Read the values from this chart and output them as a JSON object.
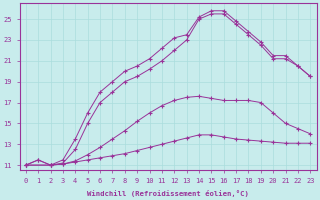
{
  "xlabel": "Windchill (Refroidissement éolien,°C)",
  "background_color": "#c8ecec",
  "line_color": "#993399",
  "grid_color": "#aadddd",
  "ylim": [
    10.5,
    26.5
  ],
  "xlim": [
    -0.5,
    23.5
  ],
  "yticks": [
    11,
    13,
    15,
    17,
    19,
    21,
    23,
    25
  ],
  "xticks": [
    0,
    1,
    2,
    3,
    4,
    5,
    6,
    7,
    8,
    9,
    10,
    11,
    12,
    13,
    14,
    15,
    16,
    17,
    18,
    19,
    20,
    21,
    22,
    23
  ],
  "series1_x": [
    0,
    1,
    2,
    3,
    4,
    5,
    6,
    7,
    8,
    9,
    10,
    11,
    12,
    13,
    14,
    15,
    16,
    17,
    18,
    19,
    20,
    21,
    22,
    23
  ],
  "series1_y": [
    11.0,
    11.5,
    11.0,
    11.1,
    11.3,
    11.5,
    11.7,
    11.9,
    12.1,
    12.4,
    12.7,
    13.0,
    13.3,
    13.6,
    13.9,
    13.9,
    13.7,
    13.5,
    13.4,
    13.3,
    13.2,
    13.1,
    13.1,
    13.1
  ],
  "series2_x": [
    0,
    1,
    2,
    3,
    4,
    5,
    6,
    7,
    8,
    9,
    10,
    11,
    12,
    13,
    14,
    15,
    16,
    17,
    18,
    19,
    20,
    21,
    22,
    23
  ],
  "series2_y": [
    11.0,
    11.5,
    11.0,
    11.1,
    11.4,
    12.0,
    12.7,
    13.5,
    14.3,
    15.2,
    16.0,
    16.7,
    17.2,
    17.5,
    17.6,
    17.4,
    17.2,
    17.2,
    17.2,
    17.0,
    16.0,
    15.0,
    14.5,
    14.0
  ],
  "series3_x": [
    0,
    2,
    3,
    4,
    5,
    6,
    7,
    8,
    9,
    10,
    11,
    12,
    13,
    14,
    15,
    16,
    17,
    18,
    19,
    20,
    21,
    22,
    23
  ],
  "series3_y": [
    11.0,
    11.0,
    11.2,
    12.5,
    15.0,
    17.0,
    18.0,
    19.0,
    19.5,
    20.2,
    21.0,
    22.0,
    23.0,
    25.0,
    25.5,
    25.5,
    24.5,
    23.5,
    22.5,
    21.2,
    21.2,
    20.5,
    19.5
  ],
  "series4_x": [
    0,
    2,
    3,
    4,
    5,
    6,
    7,
    8,
    9,
    10,
    11,
    12,
    13,
    14,
    15,
    16,
    17,
    18,
    19,
    20,
    21,
    22,
    23
  ],
  "series4_y": [
    11.0,
    11.0,
    11.5,
    13.5,
    16.0,
    18.0,
    19.0,
    20.0,
    20.5,
    21.2,
    22.2,
    23.2,
    23.5,
    25.2,
    25.8,
    25.8,
    24.8,
    23.8,
    22.8,
    21.5,
    21.5,
    20.5,
    19.5
  ]
}
